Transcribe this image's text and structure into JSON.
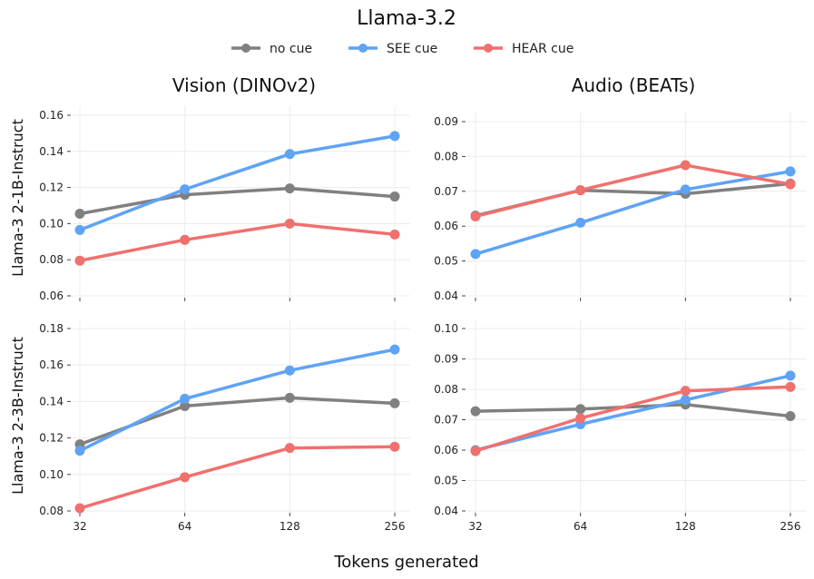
{
  "chart_data": {
    "type": "line",
    "title": "Llama-3.2",
    "xlabel": "Tokens generated",
    "x_ticks": [
      32,
      64,
      128,
      256
    ],
    "legend": {
      "placement": "top",
      "entries": [
        {
          "name": "no cue",
          "color": "#808080"
        },
        {
          "name": "SEE cue",
          "color": "#5fa3f5"
        },
        {
          "name": "HEAR cue",
          "color": "#f0706e"
        }
      ]
    },
    "columns": [
      "Vision (DINOv2)",
      "Audio (BEATs)"
    ],
    "rows": [
      "Llama-3 2-1B-Instruct",
      "Llama-3 2-3B-Instruct"
    ],
    "panels": [
      {
        "column": "Vision (DINOv2)",
        "row": "Llama-3 2-1B-Instruct",
        "ylim": [
          0.06,
          0.165
        ],
        "y_ticks": [
          "0.06",
          "0.08",
          "0.10",
          "0.12",
          "0.14",
          "0.16"
        ],
        "series": [
          {
            "name": "no cue",
            "x": [
              32,
              64,
              128,
              256
            ],
            "values": [
              0.1055,
              0.116,
              0.1195,
              0.115
            ]
          },
          {
            "name": "SEE cue",
            "x": [
              32,
              64,
              128,
              256
            ],
            "values": [
              0.0965,
              0.119,
              0.1385,
              0.1485
            ]
          },
          {
            "name": "HEAR cue",
            "x": [
              32,
              64,
              128,
              256
            ],
            "values": [
              0.0795,
              0.091,
              0.1,
              0.094
            ]
          }
        ]
      },
      {
        "column": "Audio (BEATs)",
        "row": "Llama-3 2-1B-Instruct",
        "ylim": [
          0.034,
          0.094
        ],
        "y_ticks": [
          "0.04",
          "0.05",
          "0.06",
          "0.07",
          "0.08",
          "0.09"
        ],
        "series": [
          {
            "name": "no cue",
            "x": [
              32,
              64,
              128,
              256
            ],
            "values": [
              0.063,
              0.0703,
              0.0693,
              0.0722
            ]
          },
          {
            "name": "SEE cue",
            "x": [
              32,
              64,
              128,
              256
            ],
            "values": [
              0.052,
              0.061,
              0.0705,
              0.0757
            ]
          },
          {
            "name": "HEAR cue",
            "x": [
              32,
              64,
              128,
              256
            ],
            "values": [
              0.0628,
              0.0703,
              0.0775,
              0.072
            ]
          }
        ]
      },
      {
        "column": "Vision (DINOv2)",
        "row": "Llama-3 2-3B-Instruct",
        "ylim": [
          0.06,
          0.185
        ],
        "y_ticks": [
          "0.08",
          "0.10",
          "0.12",
          "0.14",
          "0.16",
          "0.18"
        ],
        "series": [
          {
            "name": "no cue",
            "x": [
              32,
              64,
              128,
              256
            ],
            "values": [
              0.1165,
              0.1375,
              0.142,
              0.139
            ]
          },
          {
            "name": "SEE cue",
            "x": [
              32,
              64,
              128,
              256
            ],
            "values": [
              0.113,
              0.1415,
              0.157,
              0.1685
            ]
          },
          {
            "name": "HEAR cue",
            "x": [
              32,
              64,
              128,
              256
            ],
            "values": [
              0.0815,
              0.0985,
              0.1145,
              0.1152
            ]
          }
        ]
      },
      {
        "column": "Audio (BEATs)",
        "row": "Llama-3 2-3B-Instruct",
        "ylim": [
          0.04,
          0.1
        ],
        "y_ticks": [
          "0.04",
          "0.05",
          "0.06",
          "0.07",
          "0.08",
          "0.09",
          "0.10"
        ],
        "series": [
          {
            "name": "no cue",
            "x": [
              32,
              64,
              128,
              256
            ],
            "values": [
              0.0728,
              0.0735,
              0.075,
              0.0712
            ]
          },
          {
            "name": "SEE cue",
            "x": [
              32,
              64,
              128,
              256
            ],
            "values": [
              0.06,
              0.0685,
              0.0765,
              0.0845
            ]
          },
          {
            "name": "HEAR cue",
            "x": [
              32,
              64,
              128,
              256
            ],
            "values": [
              0.0597,
              0.0705,
              0.0795,
              0.0808
            ]
          }
        ]
      }
    ]
  }
}
